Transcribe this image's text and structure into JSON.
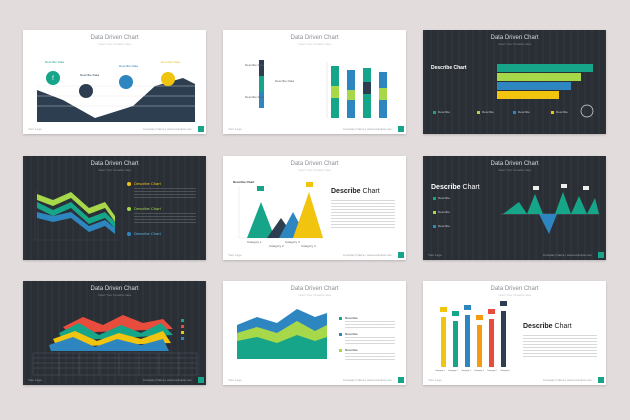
{
  "slide_title": "Data Driven Chart",
  "slide_subtitle": "Insert Your Creative Idea",
  "footer_left": "Your Logo",
  "footer_right": "Company Name | www.example.com",
  "describe_word": "Describe",
  "chart_word": "Chart",
  "describe_chart": "Describe Chart",
  "slides": [
    {
      "theme": "light",
      "labels": [
        "Describe Data",
        "Describe Data",
        "Describe Data",
        "Describe Data"
      ]
    },
    {
      "theme": "light",
      "labels": [
        "Describe Data",
        "Describe Data",
        "Describe Data"
      ]
    },
    {
      "theme": "dark",
      "labels": [
        "Describe",
        "Describe",
        "Describe",
        "Describe"
      ]
    },
    {
      "theme": "dark",
      "labels": [
        "Describe Chart",
        "Describe Chart",
        "Describe Chart"
      ]
    },
    {
      "theme": "light",
      "labels": [
        "Describe Chart",
        "Category 1",
        "Category 2",
        "Category 3",
        "Category 4"
      ]
    },
    {
      "theme": "dark",
      "labels": [
        "Describe",
        "Describe",
        "Describe"
      ]
    },
    {
      "theme": "dark",
      "labels": []
    },
    {
      "theme": "light",
      "labels": [
        "Describe",
        "Describe",
        "Describe"
      ]
    },
    {
      "theme": "light",
      "labels": [
        "Category 1",
        "Category 2",
        "Category 3",
        "Category 4",
        "Category 5",
        "Category 6"
      ]
    }
  ],
  "colors": {
    "teal": "#17a589",
    "green": "#2ecc71",
    "blue": "#2e86c1",
    "yellow": "#f1c40f",
    "lime": "#a6d84a",
    "red": "#e74c3c",
    "orange": "#f39c12",
    "navy": "#2c3e50",
    "bg": "#e2dcdc"
  }
}
